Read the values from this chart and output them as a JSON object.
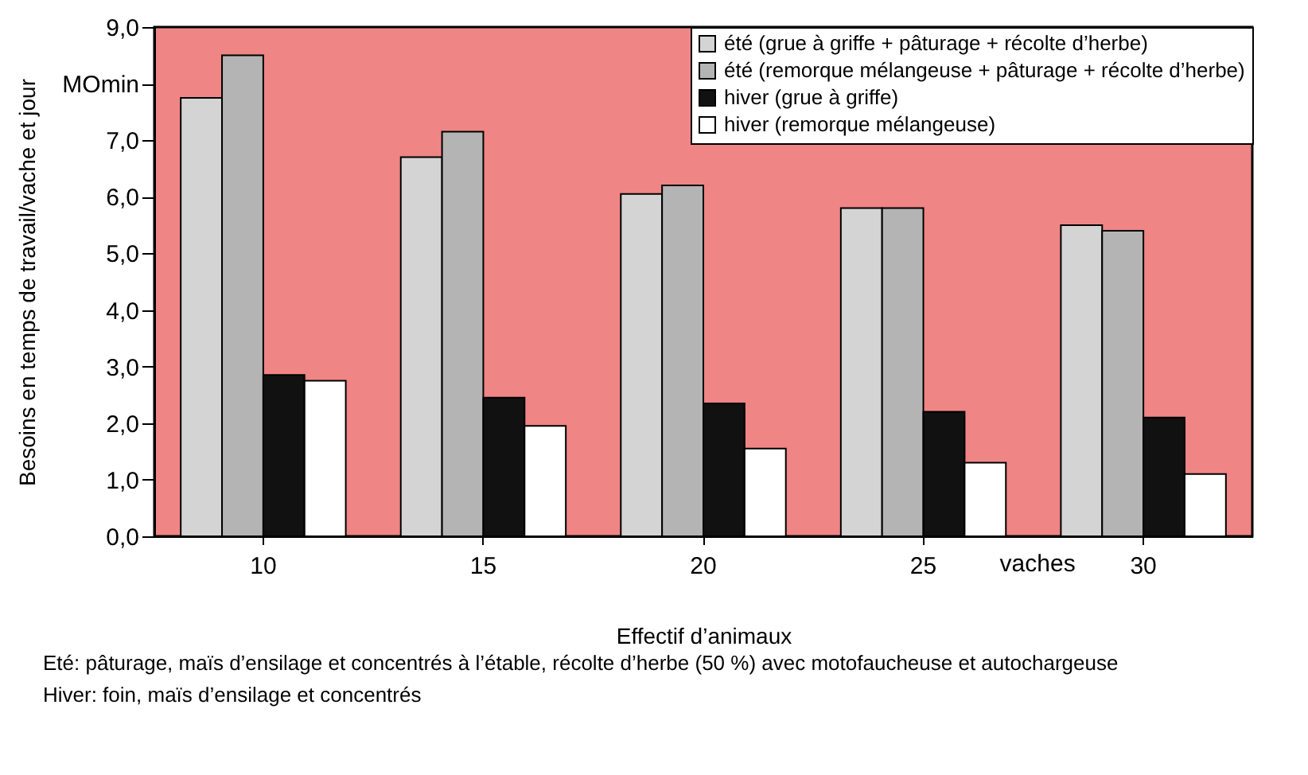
{
  "chart_data": {
    "type": "bar",
    "xlabel": "Effectif d’animaux",
    "ylabel": "Besoins en temps de travail/vache et jour",
    "categories": [
      "10",
      "15",
      "20",
      "25",
      "30"
    ],
    "series": [
      {
        "name": "été (grue à griffe + pâturage + récolte d’herbe)",
        "color": "#d4d4d4",
        "values": [
          7.75,
          6.7,
          6.05,
          5.8,
          5.5
        ]
      },
      {
        "name": "été (remorque mélangeuse + pâturage + récolte d’herbe)",
        "color": "#b4b4b4",
        "values": [
          8.5,
          7.15,
          6.2,
          5.8,
          5.4
        ]
      },
      {
        "name": "hiver (grue à griffe)",
        "color": "#111111",
        "values": [
          2.85,
          2.45,
          2.35,
          2.2,
          2.1
        ]
      },
      {
        "name": "hiver (remorque mélangeuse)",
        "color": "#ffffff",
        "values": [
          2.75,
          1.95,
          1.55,
          1.3,
          1.1
        ]
      }
    ],
    "ylim": [
      0,
      9
    ],
    "yticks": [
      {
        "value": 0,
        "label": "0,0"
      },
      {
        "value": 1,
        "label": "1,0"
      },
      {
        "value": 2,
        "label": "2,0"
      },
      {
        "value": 3,
        "label": "3,0"
      },
      {
        "value": 4,
        "label": "4,0"
      },
      {
        "value": 5,
        "label": "5,0"
      },
      {
        "value": 6,
        "label": "6,0"
      },
      {
        "value": 7,
        "label": "7,0"
      },
      {
        "value": 8,
        "label": "MOmin"
      },
      {
        "value": 9,
        "label": "9,0"
      }
    ],
    "grid": false,
    "legend": "top right",
    "annotations": [
      "vaches",
      "Eté:   pâturage, maïs d’ensilage et concentrés à l’étable, récolte d’herbe (50 %) avec motofaucheuse et autochargeuse",
      "Hiver: foin, maïs d’ensilage et concentrés"
    ]
  }
}
